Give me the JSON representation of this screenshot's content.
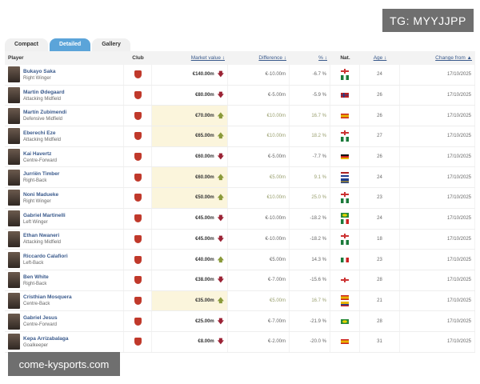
{
  "watermarks": {
    "top": "TG: MYYJJPP",
    "bottom": "come-kysports.com"
  },
  "tabs": [
    {
      "label": "Compact",
      "active": false
    },
    {
      "label": "Detailed",
      "active": true
    },
    {
      "label": "Gallery",
      "active": false
    }
  ],
  "columns": {
    "player": "Player",
    "club": "Club",
    "market_value": "Market value ↕",
    "difference": "Difference ↕",
    "pct": "% ↕",
    "nat": "Nat.",
    "age": "Age ↕",
    "change_from": "Change from ▲"
  },
  "colors": {
    "accent": "#5ba4d9",
    "link": "#3a5a8c",
    "down": "#9b2335",
    "up": "#8a9a3a",
    "highlight": "#fbf5dc"
  },
  "rows": [
    {
      "name": "Bukayo Saka",
      "position": "Right Winger",
      "club": "Arsenal",
      "market_value": "€140.00m",
      "trend": "down",
      "difference": "€-10.00m",
      "pct": "-6.7 %",
      "nat": [
        "England",
        "Nigeria"
      ],
      "age": "24",
      "date": "17/10/2025"
    },
    {
      "name": "Martin Ødegaard",
      "position": "Attacking Midfield",
      "club": "Arsenal",
      "market_value": "€80.00m",
      "trend": "down",
      "difference": "€-5.00m",
      "pct": "-5.9 %",
      "nat": [
        "Norway"
      ],
      "age": "26",
      "date": "17/10/2025"
    },
    {
      "name": "Martín Zubimendi",
      "position": "Defensive Midfield",
      "club": "Arsenal",
      "market_value": "€70.00m",
      "trend": "up",
      "difference": "€10.00m",
      "pct": "16.7 %",
      "nat": [
        "Spain"
      ],
      "age": "26",
      "date": "17/10/2025"
    },
    {
      "name": "Eberechi Eze",
      "position": "Attacking Midfield",
      "club": "Arsenal",
      "market_value": "€65.00m",
      "trend": "up",
      "difference": "€10.00m",
      "pct": "18.2 %",
      "nat": [
        "England",
        "Nigeria"
      ],
      "age": "27",
      "date": "17/10/2025"
    },
    {
      "name": "Kai Havertz",
      "position": "Centre-Forward",
      "club": "Arsenal",
      "market_value": "€60.00m",
      "trend": "down",
      "difference": "€-5.00m",
      "pct": "-7.7 %",
      "nat": [
        "Germany"
      ],
      "age": "26",
      "date": "17/10/2025"
    },
    {
      "name": "Jurriën Timber",
      "position": "Right-Back",
      "club": "Arsenal",
      "market_value": "€60.00m",
      "trend": "up",
      "difference": "€5.00m",
      "pct": "9.1 %",
      "nat": [
        "Netherlands",
        "Curacao"
      ],
      "age": "24",
      "date": "17/10/2025"
    },
    {
      "name": "Noni Madueke",
      "position": "Right Winger",
      "club": "Arsenal",
      "market_value": "€50.00m",
      "trend": "up",
      "difference": "€10.00m",
      "pct": "25.0 %",
      "nat": [
        "England",
        "Nigeria"
      ],
      "age": "23",
      "date": "17/10/2025"
    },
    {
      "name": "Gabriel Martinelli",
      "position": "Left Winger",
      "club": "Arsenal",
      "market_value": "€45.00m",
      "trend": "down",
      "difference": "€-10.00m",
      "pct": "-18.2 %",
      "nat": [
        "Brazil",
        "Italy"
      ],
      "age": "24",
      "date": "17/10/2025"
    },
    {
      "name": "Ethan Nwaneri",
      "position": "Attacking Midfield",
      "club": "Arsenal",
      "market_value": "€45.00m",
      "trend": "down",
      "difference": "€-10.00m",
      "pct": "-18.2 %",
      "nat": [
        "England",
        "Nigeria"
      ],
      "age": "18",
      "date": "17/10/2025"
    },
    {
      "name": "Riccardo Calafiori",
      "position": "Left-Back",
      "club": "Arsenal",
      "market_value": "€40.00m",
      "trend": "up",
      "difference": "€5.00m",
      "pct": "14.3 %",
      "nat": [
        "Italy"
      ],
      "age": "23",
      "date": "17/10/2025"
    },
    {
      "name": "Ben White",
      "position": "Right-Back",
      "club": "Arsenal",
      "market_value": "€38.00m",
      "trend": "down",
      "difference": "€-7.00m",
      "pct": "-15.6 %",
      "nat": [
        "England"
      ],
      "age": "28",
      "date": "17/10/2025"
    },
    {
      "name": "Cristhian Mosquera",
      "position": "Centre-Back",
      "club": "Arsenal",
      "market_value": "€35.00m",
      "trend": "up",
      "difference": "€5.00m",
      "pct": "16.7 %",
      "nat": [
        "Spain",
        "Colombia"
      ],
      "age": "21",
      "date": "17/10/2025"
    },
    {
      "name": "Gabriel Jesus",
      "position": "Centre-Forward",
      "club": "Arsenal",
      "market_value": "€25.00m",
      "trend": "down",
      "difference": "€-7.00m",
      "pct": "-21.9 %",
      "nat": [
        "Brazil"
      ],
      "age": "28",
      "date": "17/10/2025"
    },
    {
      "name": "Kepa Arrizabalaga",
      "position": "Goalkeeper",
      "club": "Arsenal",
      "market_value": "€8.00m",
      "trend": "down",
      "difference": "€-2.00m",
      "pct": "-20.0 %",
      "nat": [
        "Spain"
      ],
      "age": "31",
      "date": "17/10/2025"
    }
  ]
}
